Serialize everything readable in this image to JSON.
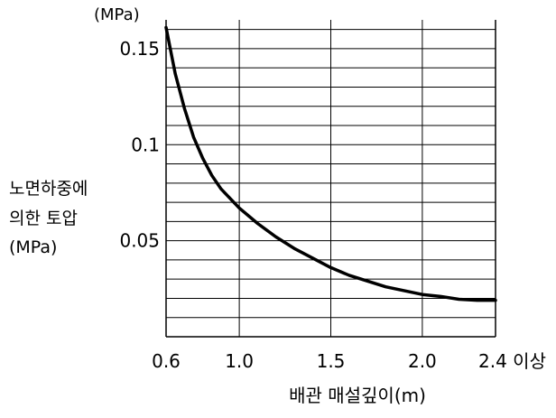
{
  "chart_data": {
    "type": "line",
    "title": "",
    "y_unit": "(MPa)",
    "ylabel_lines": [
      "노면하중에",
      "의한 토압",
      "(MPa)"
    ],
    "xlabel": "배관 매설깊이(m)",
    "xlim": [
      0.6,
      2.4
    ],
    "ylim": [
      0,
      0.165
    ],
    "x_ticks": [
      {
        "value": 0.6,
        "label": "0.6"
      },
      {
        "value": 1.0,
        "label": "1.0"
      },
      {
        "value": 1.5,
        "label": "1.5"
      },
      {
        "value": 2.0,
        "label": "2.0"
      },
      {
        "value": 2.4,
        "label": "2.4 이상"
      }
    ],
    "y_ticks": [
      {
        "value": 0.05,
        "label": "0.05"
      },
      {
        "value": 0.1,
        "label": "0.1"
      },
      {
        "value": 0.15,
        "label": "0.15"
      }
    ],
    "vertical_grid": [
      1.0,
      1.5,
      2.0
    ],
    "horizontal_grid_step": 0.01,
    "grid": true,
    "series": [
      {
        "x": [
          0.6,
          0.65,
          0.7,
          0.75,
          0.8,
          0.85,
          0.9,
          0.95,
          1.0,
          1.1,
          1.2,
          1.3,
          1.4,
          1.5,
          1.6,
          1.7,
          1.8,
          1.9,
          2.0,
          2.1,
          2.2,
          2.3,
          2.4
        ],
        "y": [
          0.161,
          0.137,
          0.119,
          0.104,
          0.093,
          0.084,
          0.077,
          0.072,
          0.067,
          0.059,
          0.052,
          0.046,
          0.041,
          0.036,
          0.032,
          0.029,
          0.026,
          0.024,
          0.022,
          0.021,
          0.0195,
          0.019,
          0.019
        ]
      }
    ],
    "colors": {
      "line": "#000000",
      "grid": "#000000"
    }
  }
}
